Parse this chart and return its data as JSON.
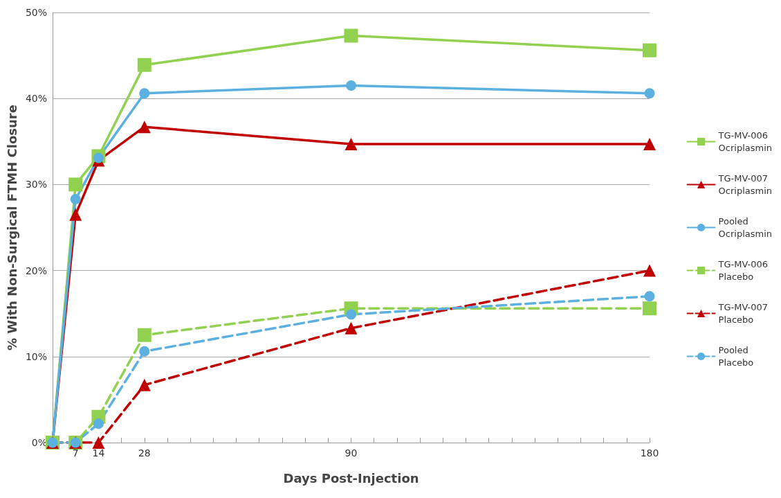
{
  "chart_data": {
    "type": "line",
    "xlabel": "Days Post-Injection",
    "ylabel": "% With Non-Surgical FTMH Closure",
    "categories": [
      null,
      "7",
      "14",
      null,
      "28",
      null,
      null,
      null,
      null,
      null,
      null,
      null,
      null,
      "90",
      null,
      null,
      null,
      null,
      null,
      null,
      null,
      null,
      null,
      null,
      null,
      null,
      "180"
    ],
    "series": [
      {
        "name": "TG-MV-006\nOcriplasmin",
        "color": "#92d050",
        "marker": "square",
        "line_style": "solid",
        "values": [
          0,
          30,
          33.3,
          null,
          43.9,
          null,
          null,
          null,
          null,
          null,
          null,
          null,
          null,
          47.3,
          null,
          null,
          null,
          null,
          null,
          null,
          null,
          null,
          null,
          null,
          null,
          null,
          45.6
        ]
      },
      {
        "name": "TG-MV-007\nOcriplasmin",
        "color": "#c00000",
        "marker": "triangle",
        "line_style": "solid",
        "values": [
          0,
          26.5,
          32.8,
          null,
          36.7,
          null,
          null,
          null,
          null,
          null,
          null,
          null,
          null,
          34.7,
          null,
          null,
          null,
          null,
          null,
          null,
          null,
          null,
          null,
          null,
          null,
          null,
          34.7
        ]
      },
      {
        "name": "Pooled\nOcriplasmin",
        "color": "#5bb0e0",
        "marker": "circle",
        "line_style": "solid",
        "values": [
          0,
          28.3,
          33.1,
          null,
          40.6,
          null,
          null,
          null,
          null,
          null,
          null,
          null,
          null,
          41.5,
          null,
          null,
          null,
          null,
          null,
          null,
          null,
          null,
          null,
          null,
          null,
          null,
          40.6
        ]
      },
      {
        "name": "TG-MV-006\nPlacebo",
        "color": "#92d050",
        "marker": "square",
        "line_style": "dashed",
        "values": [
          0,
          0,
          3,
          null,
          12.5,
          null,
          null,
          null,
          null,
          null,
          null,
          null,
          null,
          15.6,
          null,
          null,
          null,
          null,
          null,
          null,
          null,
          null,
          null,
          null,
          null,
          null,
          15.6
        ]
      },
      {
        "name": "TG-MV-007\nPlacebo",
        "color": "#c00000",
        "marker": "triangle",
        "line_style": "dashed",
        "values": [
          0,
          0,
          0,
          null,
          6.7,
          null,
          null,
          null,
          null,
          null,
          null,
          null,
          null,
          13.3,
          null,
          null,
          null,
          null,
          null,
          null,
          null,
          null,
          null,
          null,
          null,
          null,
          20
        ]
      },
      {
        "name": "Pooled\nPlacebo",
        "color": "#5bb0e0",
        "marker": "circle",
        "line_style": "dashed",
        "values": [
          0,
          0,
          2.2,
          null,
          10.6,
          null,
          null,
          null,
          null,
          null,
          null,
          null,
          null,
          14.9,
          null,
          null,
          null,
          null,
          null,
          null,
          null,
          null,
          null,
          null,
          null,
          null,
          17
        ]
      }
    ],
    "ylim": [
      0,
      50
    ],
    "yticks": [
      {
        "value": 0,
        "label": "0%"
      },
      {
        "value": 10,
        "label": "10%"
      },
      {
        "value": 20,
        "label": "20%"
      },
      {
        "value": 30,
        "label": "30%"
      },
      {
        "value": 40,
        "label": "40%"
      },
      {
        "value": 50,
        "label": "50%"
      }
    ],
    "grid": "y",
    "legend": "right"
  }
}
